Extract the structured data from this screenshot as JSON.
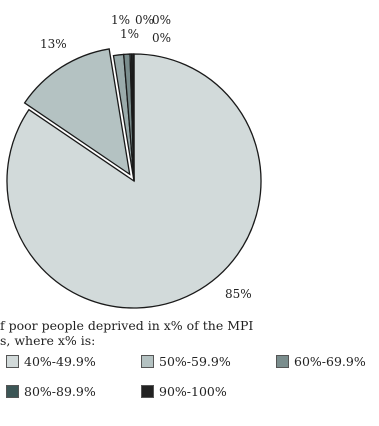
{
  "chart_data": {
    "type": "pie",
    "slices": [
      {
        "label": "85%",
        "value": 85,
        "color": "#d2dada",
        "exploded": false
      },
      {
        "label": "13%",
        "value": 13,
        "color": "#b4c2c2",
        "exploded": true
      },
      {
        "label": "1%",
        "value": 1.3,
        "color": "#9aabab",
        "exploded": false
      },
      {
        "label": "1%",
        "value": 0.8,
        "color": "#7a8d8d",
        "exploded": false
      },
      {
        "label": "0%",
        "value": 0.2,
        "color": "#5e7373",
        "exploded": false
      },
      {
        "label": "0%",
        "value": 0.2,
        "color": "#3c5656",
        "exploded": false
      },
      {
        "label": "0%",
        "value": 0.1,
        "color": "#222222",
        "exploded": false
      }
    ],
    "legend_title": "f poor people deprived in x% of the MPI\ns, where x% is:",
    "legend": [
      {
        "label": "40%-49.9%",
        "color": "#d2dada"
      },
      {
        "label": "50%-59.9%",
        "color": "#b4c2c2"
      },
      {
        "label": "60%-69.9%",
        "color": "#7a8d8d"
      },
      {
        "label": "80%-89.9%",
        "color": "#3c5656"
      },
      {
        "label": "90%-100%",
        "color": "#222222"
      }
    ]
  }
}
